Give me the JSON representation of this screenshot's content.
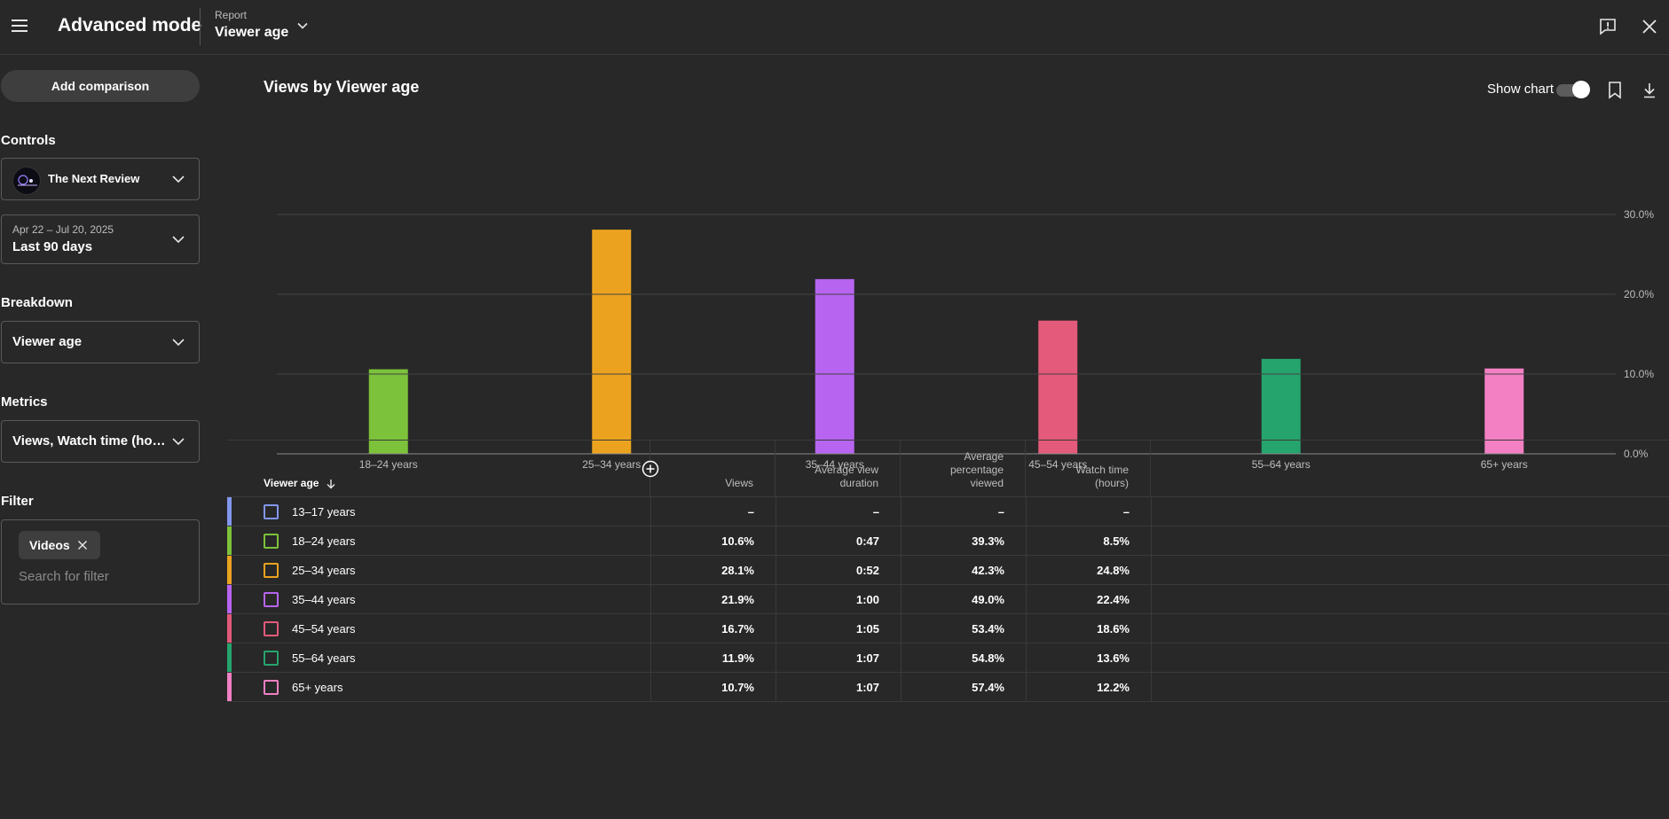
{
  "header": {
    "app_title": "Advanced mode",
    "report_label": "Report",
    "report_value": "Viewer age"
  },
  "sidebar": {
    "add_comparison_label": "Add comparison",
    "controls_title": "Controls",
    "channel_name": "The Next Review",
    "date_range": "Apr 22 – Jul 20, 2025",
    "date_preset": "Last 90 days",
    "breakdown_title": "Breakdown",
    "breakdown_value": "Viewer age",
    "metrics_title": "Metrics",
    "metrics_value": "Views, Watch time (hours)",
    "filter_title": "Filter",
    "filter_chip": "Videos",
    "filter_placeholder": "Search for filter"
  },
  "main": {
    "chart_title": "Views by Viewer age",
    "show_chart_label": "Show chart",
    "show_chart_on": true
  },
  "chart_data": {
    "type": "bar",
    "title": "Views by Viewer age",
    "categories": [
      "18–24 years",
      "25–34 years",
      "35–44 years",
      "45–54 years",
      "55–64 years",
      "65+ years"
    ],
    "values": [
      10.6,
      28.1,
      21.9,
      16.7,
      11.9,
      10.7
    ],
    "colors": [
      "#7cc23a",
      "#eba31f",
      "#b764f0",
      "#e35a7a",
      "#26a46d",
      "#f280c3"
    ],
    "ylim": [
      0,
      30
    ],
    "yticks": [
      "0.0%",
      "10.0%",
      "20.0%",
      "30.0%"
    ],
    "ytick_values": [
      0,
      10,
      20,
      30
    ],
    "grid": true,
    "xlabel": "",
    "ylabel": ""
  },
  "table": {
    "headers": {
      "dimension": "Viewer age",
      "views": "Views",
      "avg_view_duration": "Average view duration",
      "avg_percentage_viewed": "Average percentage viewed",
      "watch_time": "Watch time (hours)"
    },
    "rows": [
      {
        "label": "13–17 years",
        "color": "#8297ee",
        "views": "–",
        "avd": "–",
        "apv": "–",
        "watch": "–"
      },
      {
        "label": "18–24 years",
        "color": "#7cc23a",
        "views": "10.6%",
        "avd": "0:47",
        "apv": "39.3%",
        "watch": "8.5%"
      },
      {
        "label": "25–34 years",
        "color": "#eba31f",
        "views": "28.1%",
        "avd": "0:52",
        "apv": "42.3%",
        "watch": "24.8%"
      },
      {
        "label": "35–44 years",
        "color": "#b764f0",
        "views": "21.9%",
        "avd": "1:00",
        "apv": "49.0%",
        "watch": "22.4%"
      },
      {
        "label": "45–54 years",
        "color": "#e35a7a",
        "views": "16.7%",
        "avd": "1:05",
        "apv": "53.4%",
        "watch": "18.6%"
      },
      {
        "label": "55–64 years",
        "color": "#26a46d",
        "views": "11.9%",
        "avd": "1:07",
        "apv": "54.8%",
        "watch": "13.6%"
      },
      {
        "label": "65+ years",
        "color": "#f280c3",
        "views": "10.7%",
        "avd": "1:07",
        "apv": "57.4%",
        "watch": "12.2%"
      }
    ]
  }
}
